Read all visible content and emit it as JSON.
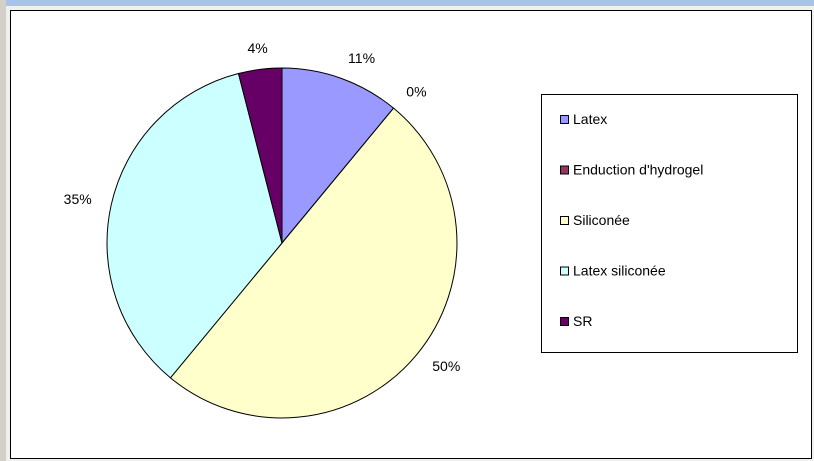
{
  "chart_data": {
    "type": "pie",
    "categories": [
      "Latex",
      "Enduction d'hydrogel",
      "Siliconée",
      "Latex siliconée",
      "SR"
    ],
    "values": [
      11,
      0,
      50,
      35,
      4
    ],
    "value_labels": [
      "11%",
      "0%",
      "50%",
      "35%",
      "4%"
    ],
    "colors": [
      "#9999ff",
      "#993366",
      "#ffffcc",
      "#ccffff",
      "#660066"
    ],
    "legend": "right"
  }
}
